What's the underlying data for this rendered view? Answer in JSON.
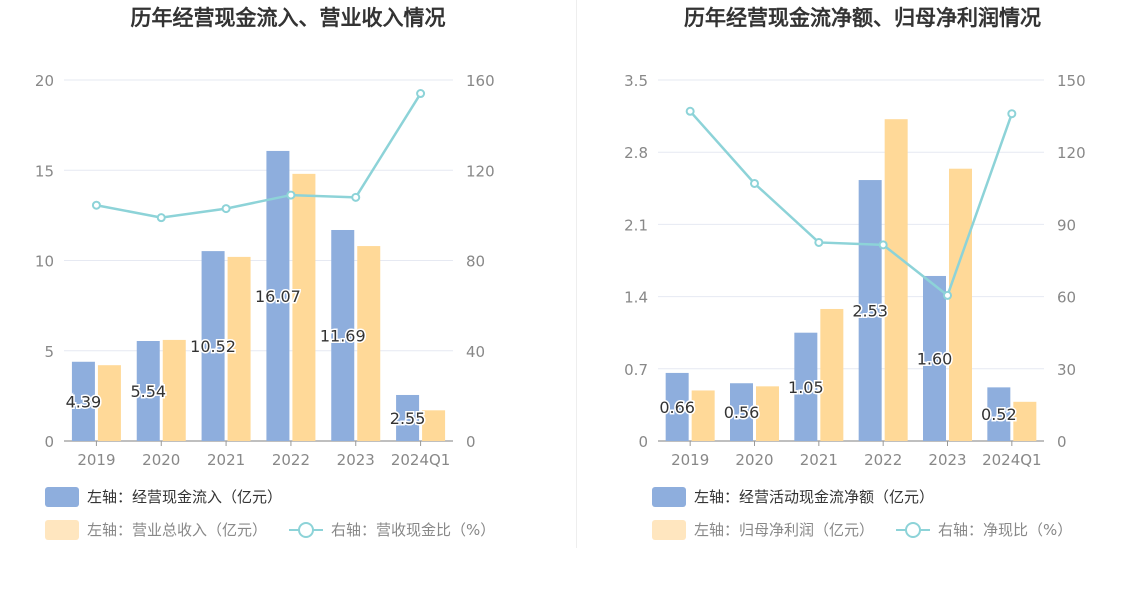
{
  "charts": [
    {
      "title": "历年经营现金流入、营业收入情况",
      "legend": {
        "bar1": "左轴：经营现金流入（亿元）",
        "bar2": "左轴：营业总收入（亿元）",
        "line": "右轴：营收现金比（%）"
      }
    },
    {
      "title": "历年经营现金流净额、归母净利润情况",
      "legend": {
        "bar1": "左轴：经营活动现金流净额（亿元）",
        "bar2": "左轴：归母净利润（亿元）",
        "line": "右轴：净现比（%）"
      }
    }
  ],
  "colors": {
    "bar1": "#8eaedd",
    "bar2": "#ffd998",
    "line": "#8dd3d8",
    "grid": "#e6e9f2",
    "axis": "#888888"
  },
  "chart_data": [
    {
      "type": "bar",
      "title": "历年经营现金流入、营业收入情况",
      "categories": [
        "2019",
        "2020",
        "2021",
        "2022",
        "2023",
        "2024Q1"
      ],
      "series": [
        {
          "name": "左轴：经营现金流入（亿元）",
          "axis": "left",
          "kind": "bar",
          "values": [
            4.39,
            5.54,
            10.52,
            16.07,
            11.69,
            2.55
          ],
          "labels": [
            "4.39",
            "5.54",
            "10.52",
            "16.07",
            "11.69",
            "2.55"
          ]
        },
        {
          "name": "左轴：营业总收入（亿元）",
          "axis": "left",
          "kind": "bar",
          "values": [
            4.2,
            5.6,
            10.2,
            14.8,
            10.8,
            1.7
          ]
        },
        {
          "name": "右轴：营收现金比（%）",
          "axis": "right",
          "kind": "line",
          "values": [
            104.5,
            99,
            103,
            109,
            108,
            154
          ]
        }
      ],
      "left_axis": {
        "min": 0,
        "max": 20,
        "ticks": [
          "0",
          "5",
          "10",
          "15",
          "20"
        ]
      },
      "right_axis": {
        "min": 0,
        "max": 160,
        "ticks": [
          "0",
          "40",
          "80",
          "120",
          "160"
        ]
      },
      "grid": true,
      "legend_position": "bottom-left"
    },
    {
      "type": "bar",
      "title": "历年经营现金流净额、归母净利润情况",
      "categories": [
        "2019",
        "2020",
        "2021",
        "2022",
        "2023",
        "2024Q1"
      ],
      "series": [
        {
          "name": "左轴：经营活动现金流净额（亿元）",
          "axis": "left",
          "kind": "bar",
          "values": [
            0.66,
            0.56,
            1.05,
            2.53,
            1.6,
            0.52
          ],
          "labels": [
            "0.66",
            "0.56",
            "1.05",
            "2.53",
            "1.60",
            "0.52"
          ]
        },
        {
          "name": "左轴：归母净利润（亿元）",
          "axis": "left",
          "kind": "bar",
          "values": [
            0.49,
            0.53,
            1.28,
            3.12,
            2.64,
            0.38
          ]
        },
        {
          "name": "右轴：净现比（%）",
          "axis": "right",
          "kind": "line",
          "values": [
            137,
            107,
            82.5,
            81.5,
            60.5,
            136
          ]
        }
      ],
      "left_axis": {
        "min": 0,
        "max": 3.5,
        "ticks": [
          "0",
          "0.7",
          "1.4",
          "2.1",
          "2.8",
          "3.5"
        ]
      },
      "right_axis": {
        "min": 0,
        "max": 150,
        "ticks": [
          "0",
          "30",
          "60",
          "90",
          "120",
          "150"
        ]
      },
      "grid": true,
      "legend_position": "bottom-left"
    }
  ]
}
